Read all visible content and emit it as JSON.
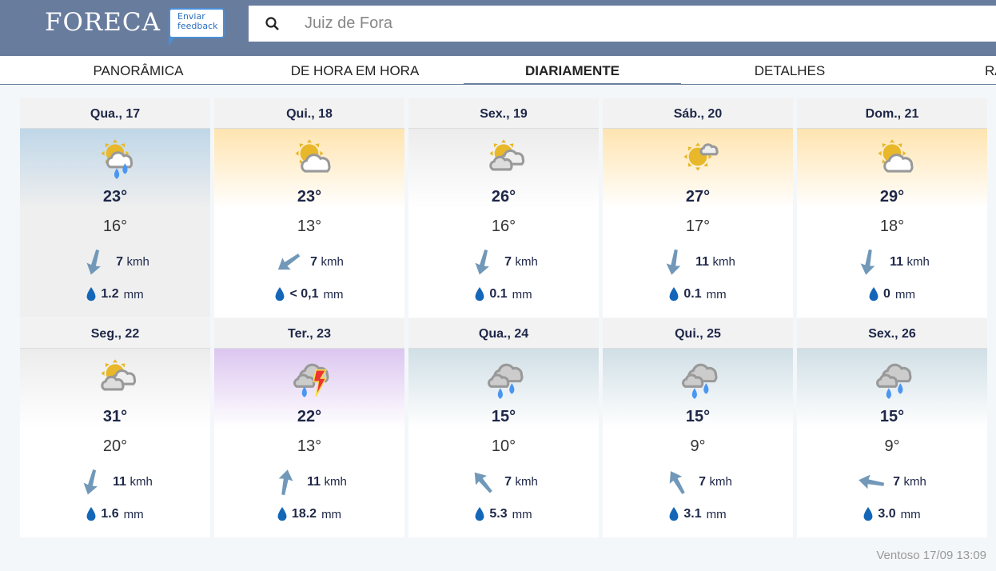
{
  "header": {
    "logo": "FORECA",
    "feedback": "Enviar feedback",
    "search_value": "Juiz de Fora"
  },
  "nav": {
    "tabs": [
      {
        "label": "PANORÂMICA"
      },
      {
        "label": "DE HORA EM HORA"
      },
      {
        "label": "DIARIAMENTE",
        "active": true
      },
      {
        "label": "DETALHES"
      },
      {
        "label": "RA"
      }
    ]
  },
  "days": [
    {
      "date": "Qua., 17",
      "icon": "sun-cloud-rain",
      "sky": "blue",
      "high": "23°",
      "low": "16°",
      "wind": "7",
      "wind_unit": "kmh",
      "wind_dir_deg": 195,
      "rain": "1.2",
      "rain_unit": "mm"
    },
    {
      "date": "Qui., 18",
      "icon": "sun-cloud",
      "sky": "yellow",
      "high": "23°",
      "low": "13°",
      "wind": "7",
      "wind_unit": "kmh",
      "wind_dir_deg": 235,
      "rain": "< 0,1",
      "rain_unit": "mm"
    },
    {
      "date": "Sex., 19",
      "icon": "sun-clouds",
      "sky": "gray",
      "high": "26°",
      "low": "16°",
      "wind": "7",
      "wind_unit": "kmh",
      "wind_dir_deg": 195,
      "rain": "0.1",
      "rain_unit": "mm"
    },
    {
      "date": "Sáb., 20",
      "icon": "sun-small-cloud",
      "sky": "yellow",
      "high": "27°",
      "low": "17°",
      "wind": "11",
      "wind_unit": "kmh",
      "wind_dir_deg": 190,
      "rain": "0.1",
      "rain_unit": "mm"
    },
    {
      "date": "Dom., 21",
      "icon": "sun-cloud",
      "sky": "yellow",
      "high": "29°",
      "low": "18°",
      "wind": "11",
      "wind_unit": "kmh",
      "wind_dir_deg": 190,
      "rain": "0",
      "rain_unit": "mm"
    },
    {
      "date": "Seg., 22",
      "icon": "sun-clouds",
      "sky": "gray",
      "high": "31°",
      "low": "20°",
      "wind": "11",
      "wind_unit": "kmh",
      "wind_dir_deg": 195,
      "rain": "1.6",
      "rain_unit": "mm"
    },
    {
      "date": "Ter., 23",
      "icon": "clouds-thunder-rain",
      "sky": "purple",
      "high": "22°",
      "low": "13°",
      "wind": "11",
      "wind_unit": "kmh",
      "wind_dir_deg": 10,
      "rain": "18.2",
      "rain_unit": "mm"
    },
    {
      "date": "Qua., 24",
      "icon": "clouds-rain",
      "sky": "slate",
      "high": "15°",
      "low": "10°",
      "wind": "7",
      "wind_unit": "kmh",
      "wind_dir_deg": 320,
      "rain": "5.3",
      "rain_unit": "mm"
    },
    {
      "date": "Qui., 25",
      "icon": "clouds-rain",
      "sky": "slate",
      "high": "15°",
      "low": "9°",
      "wind": "7",
      "wind_unit": "kmh",
      "wind_dir_deg": 330,
      "rain": "3.1",
      "rain_unit": "mm"
    },
    {
      "date": "Sex., 26",
      "icon": "clouds-rain",
      "sky": "slate",
      "high": "15°",
      "low": "9°",
      "wind": "7",
      "wind_unit": "kmh",
      "wind_dir_deg": 280,
      "rain": "3.0",
      "rain_unit": "mm"
    }
  ],
  "sky_colors": {
    "blue": "#bfd7e8",
    "yellow": "#ffe4b0",
    "gray": "#ececec",
    "purple": "#dcc6f0",
    "slate": "#d0dfe6"
  },
  "footer": "Ventoso 17/09 13:09"
}
